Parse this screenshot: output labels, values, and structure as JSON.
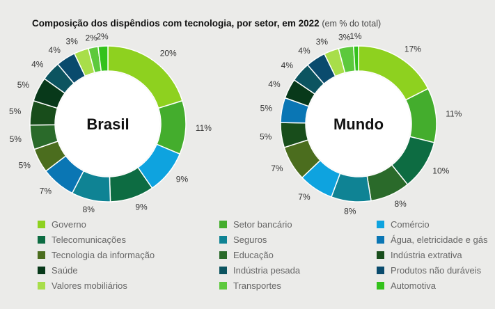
{
  "header": {
    "title": "Composição dos dispêndios com tecnologia, por setor, em 2022",
    "subtitle": "(em % do total)"
  },
  "colors": {
    "Governo": "#8ed11f",
    "Setor bancário": "#44ad2d",
    "Comércio": "#0ea3df",
    "Telecomunicações": "#0d6c42",
    "Seguros": "#0f8394",
    "Água, eletricidade e gás": "#0a76b4",
    "Tecnologia da informação": "#4b6d1e",
    "Educação": "#2a6a2a",
    "Indústria extrativa": "#184d1b",
    "Saúde": "#08391a",
    "Indústria pesada": "#0c5460",
    "Produtos não duráveis": "#0a4b6d",
    "Valores mobiliários": "#a8de4a",
    "Transportes": "#5cc93c",
    "Automotiva": "#34c21c"
  },
  "legend": [
    "Governo",
    "Setor bancário",
    "Comércio",
    "Telecomunicações",
    "Seguros",
    "Água, eletricidade e gás",
    "Tecnologia da informação",
    "Educação",
    "Indústria extrativa",
    "Saúde",
    "Indústria pesada",
    "Produtos não duráveis",
    "Valores mobiliários",
    "Transportes",
    "Automotiva"
  ],
  "chart_data": [
    {
      "type": "pie",
      "donut": true,
      "center_label": "Brasil",
      "categories": [
        "Governo",
        "Setor bancário",
        "Comércio",
        "Telecomunicações",
        "Seguros",
        "Água, eletricidade e gás",
        "Tecnologia da informação",
        "Educação",
        "Indústria extrativa",
        "Saúde",
        "Indústria pesada",
        "Produtos não duráveis",
        "Valores mobiliários",
        "Transportes",
        "Automotiva"
      ],
      "values": [
        20,
        11,
        9,
        9,
        8,
        7,
        5,
        5,
        5,
        5,
        4,
        4,
        3,
        2,
        2
      ],
      "labels": [
        "20%",
        "11%",
        "9%",
        "9%",
        "8%",
        "7%",
        "5%",
        "5%",
        "5%",
        "5%",
        "4%",
        "4%",
        "3%",
        "2%",
        "2%"
      ]
    },
    {
      "type": "pie",
      "donut": true,
      "center_label": "Mundo",
      "categories": [
        "Governo",
        "Setor bancário",
        "Telecomunicações",
        "Educação",
        "Seguros",
        "Comércio",
        "Tecnologia da informação",
        "Indústria extrativa",
        "Água, eletricidade e gás",
        "Saúde",
        "Indústria pesada",
        "Produtos não duráveis",
        "Valores mobiliários",
        "Transportes",
        "Automotiva"
      ],
      "values": [
        17,
        11,
        10,
        8,
        8,
        7,
        7,
        5,
        5,
        4,
        4,
        4,
        3,
        3,
        1
      ],
      "labels": [
        "17%",
        "11%",
        "10%",
        "8%",
        "8%",
        "7%",
        "7%",
        "5%",
        "5%",
        "4%",
        "4%",
        "4%",
        "3%",
        "3%",
        "1%"
      ]
    }
  ]
}
